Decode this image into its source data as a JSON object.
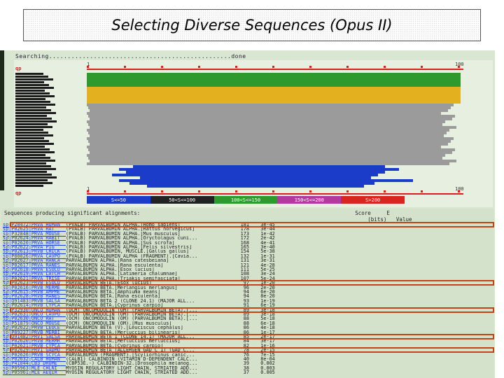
{
  "title": "Selecting Diverse Sequences (Opus II)",
  "searching_text": "Searching.................................................done",
  "graph": {
    "scale_start": "1",
    "scale_end": "100",
    "query_marker_top": "qp",
    "query_marker_bottom": "qp",
    "legend": [
      {
        "label": "S<=50",
        "color": "#1a3cc8"
      },
      {
        "label": "50<S<=100",
        "color": "#222222"
      },
      {
        "label": "100<S<=150",
        "color": "#2e9a2e"
      },
      {
        "label": "150<S<=200",
        "color": "#b23a9e"
      },
      {
        "label": "S>200",
        "color": "#d8261e"
      }
    ]
  },
  "table": {
    "header": "Sequences producing significant alignments:                                                                    Score     E\n                                                                                                                   (bits)   Value",
    "rows": [
      {
        "acc": "sp|P20472|PRVA_HUMAN",
        "desc": "(PVALB) PARVALBUMIN ALPHA.[Homo sapiens]",
        "score": "181",
        "e": "3e-45"
      },
      {
        "acc": "sp|P02625|PRVA_RAT",
        "desc": "(PVALB) PARVALBUMIN ALPHA.[Rattus norvegicus]",
        "score": "178",
        "e": "3e-44"
      },
      {
        "acc": "sp|P32848|PRVA_MOUSE",
        "desc": "(PVALB) PARVALBUMIN ALPHA.[Mus musculus]",
        "score": "173",
        "e": "1e-42"
      },
      {
        "acc": "sp|P02624|PRVA_RABIT",
        "desc": "(PVALB) PARVALBUMIN ALPHA.[Oryctolagus cuni...",
        "score": "172",
        "e": "2e-42"
      },
      {
        "acc": "sp|P02620|PRVA_HORSE",
        "desc": "(PVALB) PARVALBUMIN ALPHA.[Sus scrofa]",
        "score": "168",
        "e": "4e-41"
      },
      {
        "acc": "sp|P02622|PRVA_PIG",
        "desc": "(PVALB) PARVALBUMIN ALPHA.[Felis silvestris]",
        "score": "165",
        "e": "3e-40"
      },
      {
        "acc": "sp|P02613|PRVB_CHICK",
        "desc": "(PVALB) PARVALBUMIN, MUSCLE.[Gallus gallus]",
        "score": "154",
        "e": "5e-38"
      },
      {
        "acc": "sp|P80026|PRVA_CAVPO",
        "desc": "(PVALB) PARVALBUMIN ALPHA (FRAGMENT).[Cavia...",
        "score": "132",
        "e": "1e-31"
      },
      {
        "acc": "sp|P02627|PRVA_RANCA",
        "desc": "PARVALBUMIN ALPHA.[Rana catesbeiana]",
        "score": "131",
        "e": "3e-31"
      },
      {
        "acc": "sp|P02617|PRVA_RANES",
        "desc": "PARVALBUMIN ALPHA.[Rana esculenta]",
        "score": "121",
        "e": "4e-28"
      },
      {
        "acc": "sp|P02618|PRVA_ESOLU",
        "desc": "PARVALBUMIN ALPHA.[Esox lucius]",
        "score": "111",
        "e": "5e-25"
      },
      {
        "acc": "sp|P02619|PRVA_LATCH",
        "desc": "PARVALBUMIN ALPHA.[Latimeria chalumnae]",
        "score": "108",
        "e": "3e-24"
      },
      {
        "acc": "sp|P02621|PRVA_TRISE",
        "desc": "PARVALBUMIN ALPHA.[Triakis semifasciata]",
        "score": "107",
        "e": "5e-24"
      },
      {
        "acc": "sp|P02623|PRVB_ESOLU",
        "desc": "PARVALBUMIN BETA.[Esox lucius]",
        "score": "97",
        "e": "1e-20"
      },
      {
        "acc": "sp|P02616|PRVB_MERME",
        "desc": "PARVALBUMIN BETA.[Merlangius merlangus]",
        "score": "96",
        "e": "2e-20"
      },
      {
        "acc": "sp|P02615|PRVB_AMPME",
        "desc": "PARVALBUMIN BETA.[Amphiuma means]",
        "score": "94",
        "e": "6e-20"
      },
      {
        "acc": "sp|P02628|PRVB_RANES",
        "desc": "PARVALBUMIN BETA.[Rana esculenta]",
        "score": "94",
        "e": "8e-20"
      },
      {
        "acc": "sp|Q91483|PRVB_SALSA",
        "desc": "PARVALBUMIN BETA 2 (CLONE 24.1) (MAJOR ALL...",
        "score": "93",
        "e": "1e-19"
      },
      {
        "acc": "sp|P02614|PRVB_CYPCA",
        "desc": "PARVALBUMIN BETA.[Cyprinus carpio]",
        "score": "91",
        "e": "6e-19"
      },
      {
        "acc": "sp|P32930|ONCO_HUMAN",
        "desc": "(OCM) ONCOMODULIN (OM) (PARVALBUMIN BETA).[...",
        "score": "89",
        "e": "3e-18"
      },
      {
        "acc": "sp|P02631|ONCO_CAVPO",
        "desc": "(OCM) ONCOMODULIN (OM) (PARVALBUMIN BETA).[...",
        "score": "89",
        "e": "3e-18"
      },
      {
        "acc": "sp|P02630|ONCO_RAT",
        "desc": "(OCM) ONCOMODULIN (OM) (PARVALBUMIN BETA).[...",
        "score": "88",
        "e": "5e-18"
      },
      {
        "acc": "sp|P51879|ONCO_MOUSE",
        "desc": "(OCM) ONCOMODULIN (OM).[Mus musculus]",
        "score": "88",
        "e": "6e-18"
      },
      {
        "acc": "sp|P02622|PRVB_LEUCE",
        "desc": "PARVALBUMIN BETA (V).[Leuciscus cephalus]",
        "score": "86",
        "e": "4e-18"
      },
      {
        "acc": "sp|P09227|PRVB_MERBI",
        "desc": "PARVALBUMIN BETA.[Merluccius bilinearis]",
        "score": "86",
        "e": "1e-17"
      },
      {
        "acc": "sp|Q91482|PRV1_SALSA",
        "desc": "PARVALBUMIN BETA 1 (CLONE 14.1) (MAJOR ALL...",
        "score": "85",
        "e": "2e-17"
      },
      {
        "acc": "sp|P02620|PRVB_MERMR",
        "desc": "PARVALBUMIN BETA.[Merluccius merluccius]",
        "score": "84",
        "e": "3e-17"
      },
      {
        "acc": "sp|P02621|PRVB_CYPCA",
        "desc": "PARVALBUMIN BETA.[Cyprinus carpio]",
        "score": "82",
        "e": "1e-16"
      },
      {
        "acc": "sp|P02629|PRV1_GADMO",
        "desc": "PARVALBUMIN BETA (ALLERGEN GAD C 1) (GAD C...",
        "score": "78",
        "e": "2e-15"
      },
      {
        "acc": "sp|P02626|PRVB_SCYCA",
        "desc": "PARVALBUMIN (FRAGMENT).[Scyliorhinus canic...",
        "score": "76",
        "e": "7e-15"
      },
      {
        "acc": "sp|P02632|CALB_HUMAN",
        "desc": "(CALB1) CALBINDIN (VITAMIN D-DEPENDENT CALC...",
        "score": "40",
        "e": "8e-04"
      },
      {
        "acc": "sp|P41044|CB3_DROME",
        "desc": "(CBP53E.-) CALBINDIN-32.[Drosophila melanog...",
        "score": "39",
        "e": "0.002"
      },
      {
        "acc": "sp|P05963|MLE_CHLNI",
        "desc": "MYOSIN REGULATORY LIGHT CHAIN, STRIATED ADD...",
        "score": "38",
        "e": "0.003"
      },
      {
        "acc": "sp|P05961|MLE_AEQIR",
        "desc": "MYOSIN REGULATORY LIGHT CHAIN, STRIATED ADD...",
        "score": "37",
        "e": "0.005"
      }
    ],
    "highlight_color": "#c24418"
  }
}
